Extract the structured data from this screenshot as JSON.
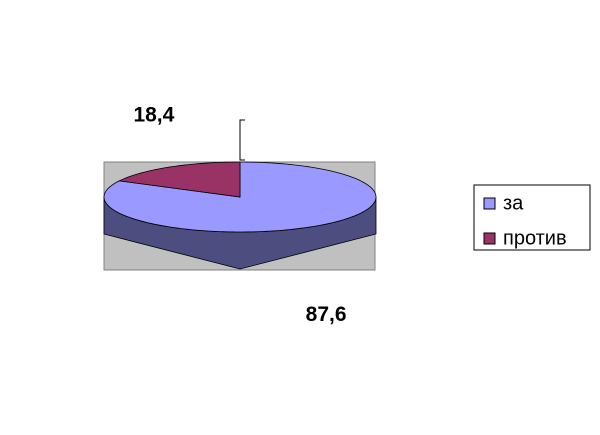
{
  "chart_data": {
    "type": "pie",
    "categories": [
      "за",
      "против"
    ],
    "values": [
      87.6,
      18.4
    ],
    "value_labels": [
      "87,6",
      "18,4"
    ],
    "colors": [
      "#9999ff",
      "#993366"
    ],
    "legend": "right"
  }
}
